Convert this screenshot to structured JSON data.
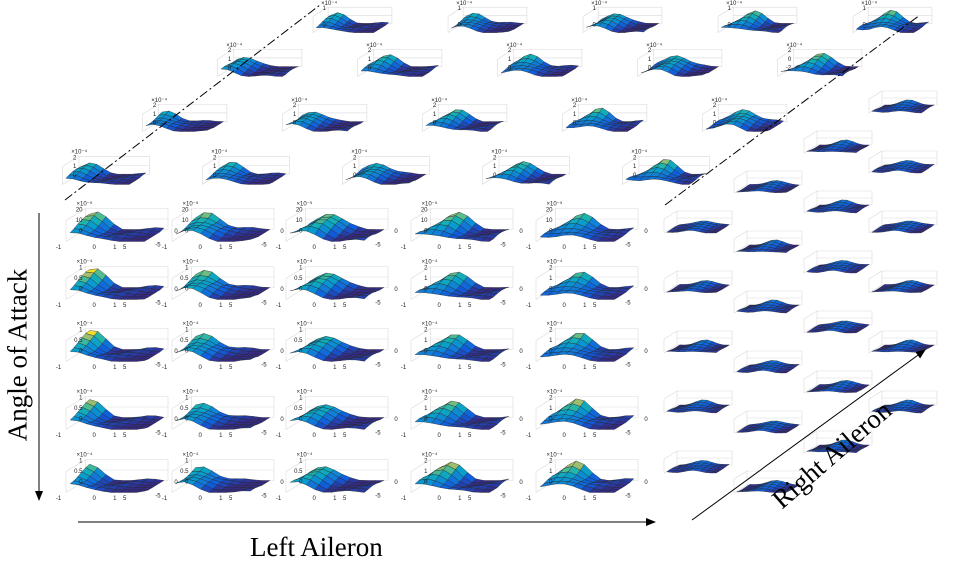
{
  "chart_data": {
    "type": "surface-grid",
    "xlabel": "Left Aileron",
    "ylabel": "Angle of Attack",
    "zlabel": "Right Aileron",
    "panel_axes": {
      "x_ticks": [
        "-1",
        "0",
        "1",
        "5"
      ],
      "y_ticks": [
        "0",
        "-5"
      ],
      "colormap": "parula"
    },
    "grid": {
      "front_face_rows": 5,
      "front_face_cols": 5,
      "depth_layers": 5
    },
    "row_scales": [
      {
        "row": 1,
        "exponent_label": "×10⁻⁵",
        "z_ticks": [
          "20",
          "10",
          "0"
        ],
        "zlim": [
          0,
          20
        ]
      },
      {
        "row": 2,
        "exponent_label": "×10⁻⁴",
        "z_ticks": [
          "1",
          "0.5",
          "0"
        ],
        "zlim": [
          0,
          1
        ]
      },
      {
        "row": 3,
        "exponent_label": "×10⁻⁴",
        "z_ticks": [
          "1",
          "0.5",
          "0"
        ],
        "zlim": [
          0,
          1
        ]
      },
      {
        "row": 4,
        "exponent_label": "×10⁻⁴",
        "z_ticks": [
          "1",
          "0.5",
          "0"
        ],
        "zlim": [
          0,
          1
        ]
      },
      {
        "row": 5,
        "exponent_label": "×10⁻⁴",
        "z_ticks": [
          "1",
          "0.5",
          "0"
        ],
        "zlim": [
          0,
          1
        ]
      }
    ],
    "top_face_scales": {
      "exponent_label": "×10⁻⁴",
      "z_ticks_a": [
        "2",
        "1",
        "0"
      ],
      "z_ticks_b": [
        "1",
        "0"
      ],
      "z_ticks_c": [
        "2",
        "0",
        "-2"
      ]
    },
    "column_alt_scales": [
      {
        "col": 4,
        "z_ticks": [
          "2",
          "1",
          "0"
        ]
      },
      {
        "col": 5,
        "z_ticks": [
          "2",
          "1",
          "0"
        ]
      }
    ]
  }
}
